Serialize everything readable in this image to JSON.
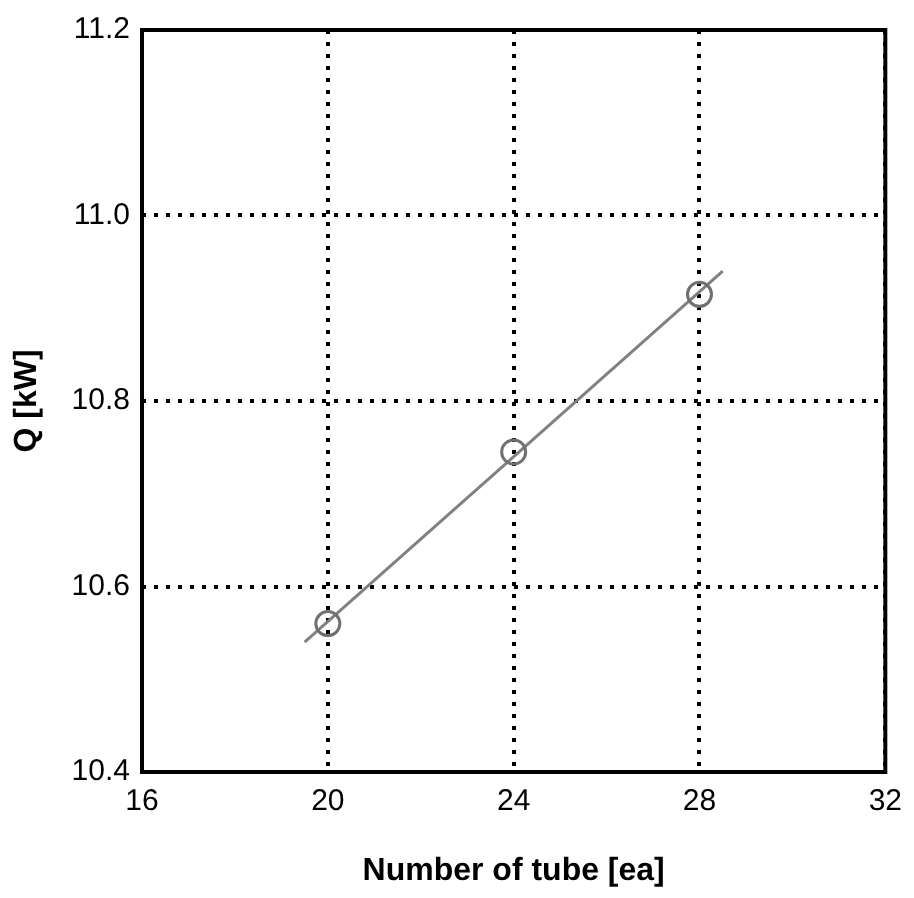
{
  "chart_data": {
    "type": "scatter",
    "xlabel": "Number of tube [ea]",
    "ylabel": "Q [kW]",
    "xlim": [
      16,
      32
    ],
    "xticks": [
      16,
      20,
      24,
      28,
      32
    ],
    "ylim": [
      10.4,
      11.2
    ],
    "yticks": [
      {
        "value": 10.4,
        "label": "10.4"
      },
      {
        "value": 10.6,
        "label": "10.6"
      },
      {
        "value": 10.8,
        "label": "10.8"
      },
      {
        "value": 11,
        "label": "11.0"
      },
      {
        "value": 11.2,
        "label": "11.2"
      }
    ],
    "grid": true,
    "legend": false,
    "series": [
      {
        "color": "#707070",
        "marker": "circle",
        "x": [
          20,
          24,
          28
        ],
        "values": [
          10.56,
          10.745,
          10.915
        ]
      },
      {
        "type": "line",
        "color": "#808080",
        "marker": "none",
        "line_style": "solid",
        "x": [
          19.5,
          28.5
        ],
        "values": [
          10.54,
          10.94
        ]
      }
    ]
  }
}
